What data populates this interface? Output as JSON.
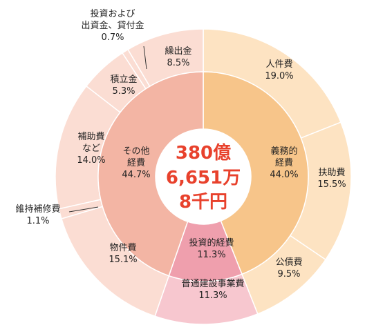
{
  "chart_data": {
    "type": "pie",
    "center_total": {
      "line1": "380億",
      "line2": "6,651万",
      "line3": "8千円"
    },
    "inner_ring": [
      {
        "name_lines": [
          "義務的",
          "経費"
        ],
        "value": 44.0,
        "pct_label": "44.0%",
        "color": "#f7c58a"
      },
      {
        "name_lines": [
          "投資的経費"
        ],
        "value": 11.3,
        "pct_label": "11.3%",
        "color": "#ef9fad"
      },
      {
        "name_lines": [
          "その他",
          "経費"
        ],
        "value": 44.7,
        "pct_label": "44.7%",
        "color": "#f3b5a4"
      }
    ],
    "outer_ring": [
      {
        "name_lines": [
          "人件費"
        ],
        "value": 19.0,
        "pct_label": "19.0%",
        "group": 0,
        "color": "#fde3c2"
      },
      {
        "name_lines": [
          "扶助費"
        ],
        "value": 15.5,
        "pct_label": "15.5%",
        "group": 0,
        "color": "#fde3c2"
      },
      {
        "name_lines": [
          "公債費"
        ],
        "value": 9.5,
        "pct_label": "9.5%",
        "group": 0,
        "color": "#fde3c2"
      },
      {
        "name_lines": [
          "普通建設事業費"
        ],
        "value": 11.3,
        "pct_label": "11.3%",
        "group": 1,
        "color": "#f7c7cf"
      },
      {
        "name_lines": [
          "物件費"
        ],
        "value": 15.1,
        "pct_label": "15.1%",
        "group": 2,
        "color": "#fbddd3"
      },
      {
        "name_lines": [
          "維持補修費"
        ],
        "value": 1.1,
        "pct_label": "1.1%",
        "group": 2,
        "color": "#fbddd3"
      },
      {
        "name_lines": [
          "補助費",
          "など"
        ],
        "value": 14.0,
        "pct_label": "14.0%",
        "group": 2,
        "color": "#fbddd3"
      },
      {
        "name_lines": [
          "積立金"
        ],
        "value": 5.3,
        "pct_label": "5.3%",
        "group": 2,
        "color": "#fbddd3"
      },
      {
        "name_lines": [
          "投資および",
          "出資金、貸付金"
        ],
        "value": 0.7,
        "pct_label": "0.7%",
        "group": 2,
        "color": "#fbddd3"
      },
      {
        "name_lines": [
          "繰出金"
        ],
        "value": 8.5,
        "pct_label": "8.5%",
        "group": 2,
        "color": "#fbddd3"
      }
    ]
  }
}
